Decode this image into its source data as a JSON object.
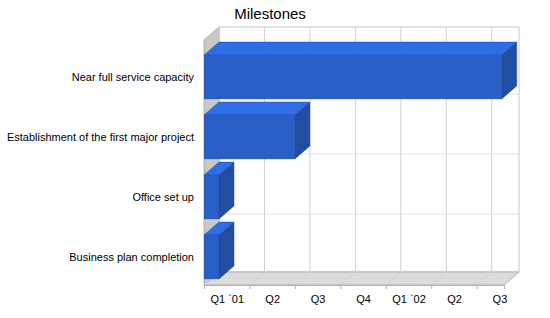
{
  "chart_data": {
    "type": "bar",
    "orientation": "horizontal",
    "title": "Milestones",
    "categories": [
      "Near full service capacity",
      "Establishment of the first major project",
      "Office set up",
      "Business plan completion"
    ],
    "start": [
      0,
      0,
      0,
      0
    ],
    "end": [
      6.55,
      2,
      0.33,
      0.33
    ],
    "color": "#2a5fc8",
    "xlim": [
      0,
      6.6
    ],
    "xticks": [
      {
        "value": 0,
        "label": "Q1 `01"
      },
      {
        "value": 1,
        "label": "Q2"
      },
      {
        "value": 2,
        "label": "Q3"
      },
      {
        "value": 3,
        "label": "Q4"
      },
      {
        "value": 4,
        "label": "Q1 `02"
      },
      {
        "value": 5,
        "label": "Q2"
      },
      {
        "value": 6,
        "label": "Q3"
      }
    ],
    "grid": true
  }
}
